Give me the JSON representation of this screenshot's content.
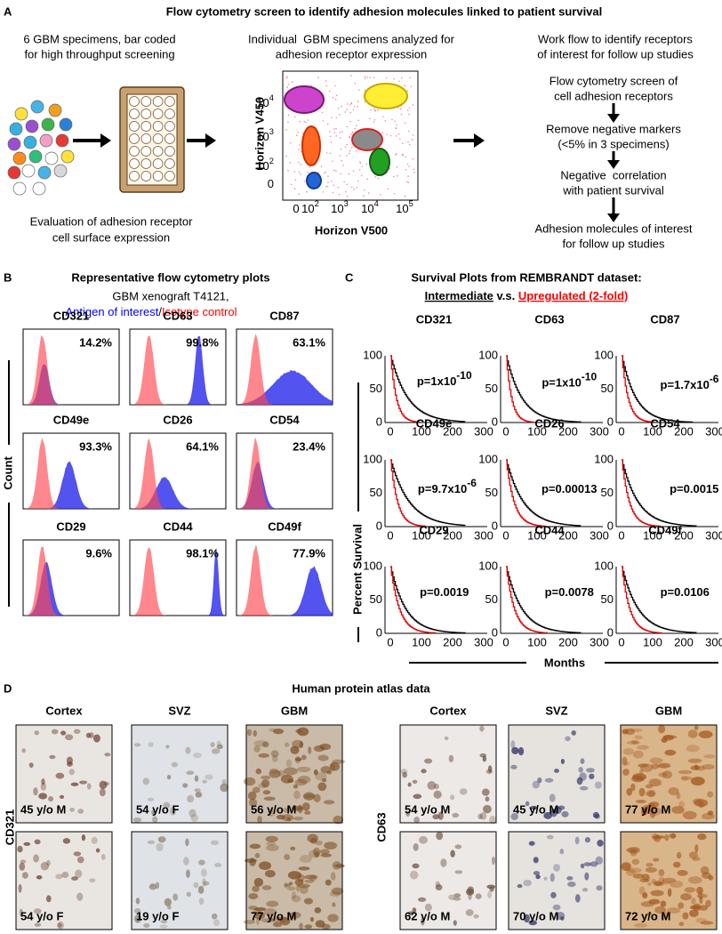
{
  "panel_a": {
    "letter": "A",
    "title": "Flow cytometry screen to identify adhesion molecules linked to patient survival",
    "specimens": [
      "6 GBM specimens, bar coded",
      "for high throughput screening"
    ],
    "evaluation": [
      "Evaluation of adhesion receptor",
      "cell surface expression"
    ],
    "analysis": [
      "Individual  GBM specimens analyzed for",
      "adhesion receptor expression"
    ],
    "flow_plot": {
      "y_label": "Horizon V450",
      "x_label": "Horizon V500",
      "y_ticks": [
        {
          "base": "10",
          "exp": "4"
        },
        {
          "base": "10",
          "exp": "3"
        },
        {
          "base": "10",
          "exp": "2"
        },
        {
          "base": "0"
        }
      ],
      "x_ticks": [
        {
          "base": "0"
        },
        {
          "base": "10",
          "exp": "2"
        },
        {
          "base": "10",
          "exp": "3"
        },
        {
          "base": "10",
          "exp": "4"
        },
        {
          "base": "10",
          "exp": "5"
        }
      ]
    },
    "workflow": {
      "heading": [
        "Work flow to identify receptors",
        "of interest for follow up studies"
      ],
      "steps": [
        [
          "Flow cytometry screen of",
          "cell adhesion receptors"
        ],
        [
          "Remove negative markers",
          "(<5% in 3 specimens)"
        ],
        [
          "Negative  correlation",
          "with patient survival"
        ],
        [
          "Adhesion molecules of interest",
          "for follow up studies"
        ]
      ]
    }
  },
  "panel_b": {
    "letter": "B",
    "title": "Representative flow cytometry plots",
    "subtitle": "GBM xenograft T4121,",
    "legend": [
      {
        "text": "Antigen of interest",
        "color": "#0000ff"
      },
      {
        "text": "/",
        "color": "#000000"
      },
      {
        "text": "Isotype control",
        "color": "#ff0000"
      }
    ],
    "y_label": "Count",
    "plots": [
      {
        "name": "CD321",
        "percent": "14.2%"
      },
      {
        "name": "CD63",
        "percent": "99.8%"
      },
      {
        "name": "CD87",
        "percent": "63.1%"
      },
      {
        "name": "CD49e",
        "percent": "93.3%"
      },
      {
        "name": "CD26",
        "percent": "64.1%"
      },
      {
        "name": "CD54",
        "percent": "23.4%"
      },
      {
        "name": "CD29",
        "percent": "9.6%"
      },
      {
        "name": "CD44",
        "percent": "98.1%"
      },
      {
        "name": "CD49f",
        "percent": "77.9%"
      }
    ]
  },
  "panel_c": {
    "letter": "C",
    "title": "Survival Plots from REMBRANDT dataset:",
    "comparison": [
      {
        "text": "Intermediate",
        "color": "#000000",
        "underline": true
      },
      {
        "text": " v.s. ",
        "color": "#000000",
        "underline": false
      },
      {
        "text": "Upregulated (2-fold)",
        "color": "#ff0000",
        "underline": true
      }
    ],
    "y_label": "Percent Survival",
    "x_label": "Months",
    "y_ticks": [
      "100",
      "50",
      "0"
    ],
    "x_ticks": [
      "0",
      "100",
      "200",
      "300"
    ],
    "plots": [
      {
        "name": "CD321",
        "p": "p=1x10",
        "p_exp": "-10"
      },
      {
        "name": "CD63",
        "p": "p=1x10",
        "p_exp": "-10"
      },
      {
        "name": "CD87",
        "p": "p=1.7x10",
        "p_exp": "-6"
      },
      {
        "name": "CD49e",
        "p": "p=9.7x10",
        "p_exp": "-6"
      },
      {
        "name": "CD26",
        "p": "p=0.00013"
      },
      {
        "name": "CD54",
        "p": "p=0.0015"
      },
      {
        "name": "CD29",
        "p": "p=0.0019"
      },
      {
        "name": "CD44",
        "p": "p=0.0078"
      },
      {
        "name": "CD49f",
        "p": "p=0.0106"
      }
    ]
  },
  "panel_d": {
    "letter": "D",
    "title": "Human protein atlas data",
    "groups": [
      {
        "marker": "CD321",
        "columns": [
          "Cortex",
          "SVZ",
          "GBM"
        ],
        "images": [
          [
            "45 y/o M",
            "54 y/o F",
            "56 y/o M"
          ],
          [
            "54 y/o F",
            "19 y/o F",
            "77 y/o M"
          ]
        ]
      },
      {
        "marker": "CD63",
        "columns": [
          "Cortex",
          "SVZ",
          "GBM"
        ],
        "images": [
          [
            "54 y/o M",
            "45 y/o M",
            "77 y/o M"
          ],
          [
            "62 y/o M",
            "70 y/o M",
            "72 y/o M"
          ]
        ]
      }
    ]
  }
}
